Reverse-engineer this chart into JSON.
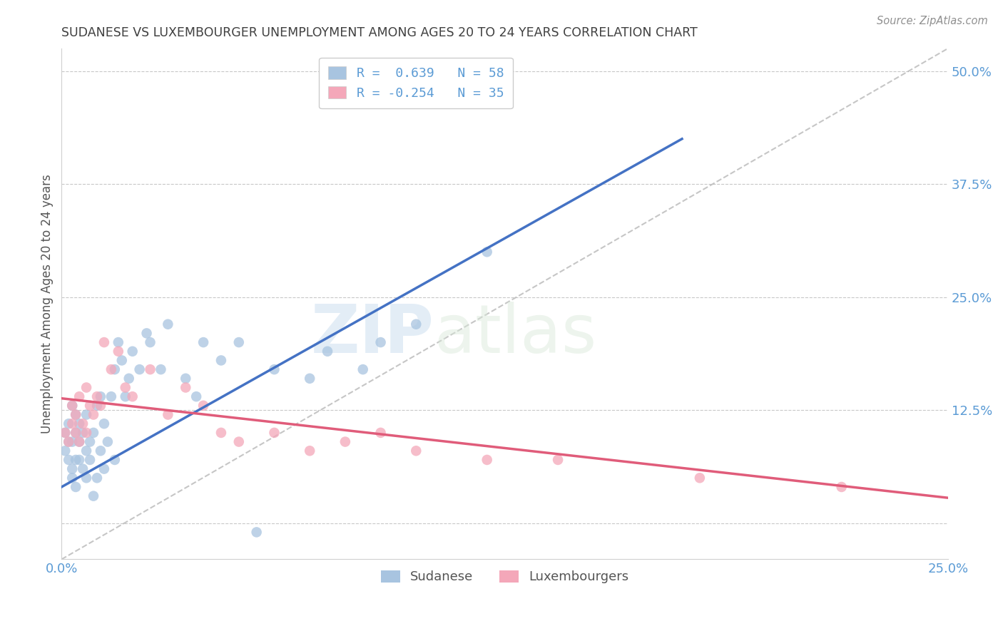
{
  "title": "SUDANESE VS LUXEMBOURGER UNEMPLOYMENT AMONG AGES 20 TO 24 YEARS CORRELATION CHART",
  "source": "Source: ZipAtlas.com",
  "ylabel": "Unemployment Among Ages 20 to 24 years",
  "xlim": [
    0.0,
    0.25
  ],
  "ylim": [
    -0.04,
    0.525
  ],
  "xtick_positions": [
    0.0,
    0.05,
    0.1,
    0.15,
    0.2,
    0.25
  ],
  "xtick_labels": [
    "0.0%",
    "",
    "",
    "",
    "",
    "25.0%"
  ],
  "ytick_positions": [
    0.0,
    0.125,
    0.25,
    0.375,
    0.5
  ],
  "ytick_labels": [
    "",
    "12.5%",
    "25.0%",
    "37.5%",
    "50.0%"
  ],
  "blue_R": 0.639,
  "blue_N": 58,
  "pink_R": -0.254,
  "pink_N": 35,
  "blue_color": "#a8c4e0",
  "blue_line_color": "#4472c4",
  "pink_color": "#f4a7b9",
  "pink_line_color": "#e05c7a",
  "ref_line_color": "#b8b8b8",
  "legend_label_blue": "Sudanese",
  "legend_label_pink": "Luxembourgers",
  "title_color": "#404040",
  "axis_label_color": "#555555",
  "tick_color": "#5b9bd5",
  "grid_color": "#c8c8c8",
  "watermark_zip": "ZIP",
  "watermark_atlas": "atlas",
  "blue_line_x0": 0.0,
  "blue_line_y0": 0.04,
  "blue_line_x1": 0.175,
  "blue_line_y1": 0.425,
  "pink_line_x0": 0.0,
  "pink_line_y0": 0.138,
  "pink_line_x1": 0.25,
  "pink_line_y1": 0.028,
  "ref_line_x0": 0.0,
  "ref_line_y0": -0.04,
  "ref_line_x1": 0.25,
  "ref_line_y1": 0.525,
  "blue_scatter_x": [
    0.001,
    0.001,
    0.002,
    0.002,
    0.002,
    0.003,
    0.003,
    0.003,
    0.003,
    0.004,
    0.004,
    0.004,
    0.004,
    0.005,
    0.005,
    0.005,
    0.006,
    0.006,
    0.007,
    0.007,
    0.007,
    0.008,
    0.008,
    0.009,
    0.009,
    0.01,
    0.01,
    0.011,
    0.011,
    0.012,
    0.012,
    0.013,
    0.014,
    0.015,
    0.015,
    0.016,
    0.017,
    0.018,
    0.019,
    0.02,
    0.022,
    0.024,
    0.025,
    0.028,
    0.03,
    0.035,
    0.038,
    0.04,
    0.045,
    0.05,
    0.055,
    0.06,
    0.07,
    0.075,
    0.085,
    0.09,
    0.1,
    0.12
  ],
  "blue_scatter_y": [
    0.08,
    0.1,
    0.07,
    0.09,
    0.11,
    0.05,
    0.06,
    0.09,
    0.13,
    0.04,
    0.07,
    0.1,
    0.12,
    0.07,
    0.09,
    0.11,
    0.06,
    0.1,
    0.05,
    0.08,
    0.12,
    0.07,
    0.09,
    0.03,
    0.1,
    0.05,
    0.13,
    0.08,
    0.14,
    0.06,
    0.11,
    0.09,
    0.14,
    0.07,
    0.17,
    0.2,
    0.18,
    0.14,
    0.16,
    0.19,
    0.17,
    0.21,
    0.2,
    0.17,
    0.22,
    0.16,
    0.14,
    0.2,
    0.18,
    0.2,
    -0.01,
    0.17,
    0.16,
    0.19,
    0.17,
    0.2,
    0.22,
    0.3
  ],
  "pink_scatter_x": [
    0.001,
    0.002,
    0.003,
    0.003,
    0.004,
    0.004,
    0.005,
    0.005,
    0.006,
    0.007,
    0.007,
    0.008,
    0.009,
    0.01,
    0.011,
    0.012,
    0.014,
    0.016,
    0.018,
    0.02,
    0.025,
    0.03,
    0.035,
    0.04,
    0.045,
    0.05,
    0.06,
    0.07,
    0.08,
    0.09,
    0.1,
    0.12,
    0.14,
    0.18,
    0.22
  ],
  "pink_scatter_y": [
    0.1,
    0.09,
    0.11,
    0.13,
    0.1,
    0.12,
    0.09,
    0.14,
    0.11,
    0.1,
    0.15,
    0.13,
    0.12,
    0.14,
    0.13,
    0.2,
    0.17,
    0.19,
    0.15,
    0.14,
    0.17,
    0.12,
    0.15,
    0.13,
    0.1,
    0.09,
    0.1,
    0.08,
    0.09,
    0.1,
    0.08,
    0.07,
    0.07,
    0.05,
    0.04
  ]
}
